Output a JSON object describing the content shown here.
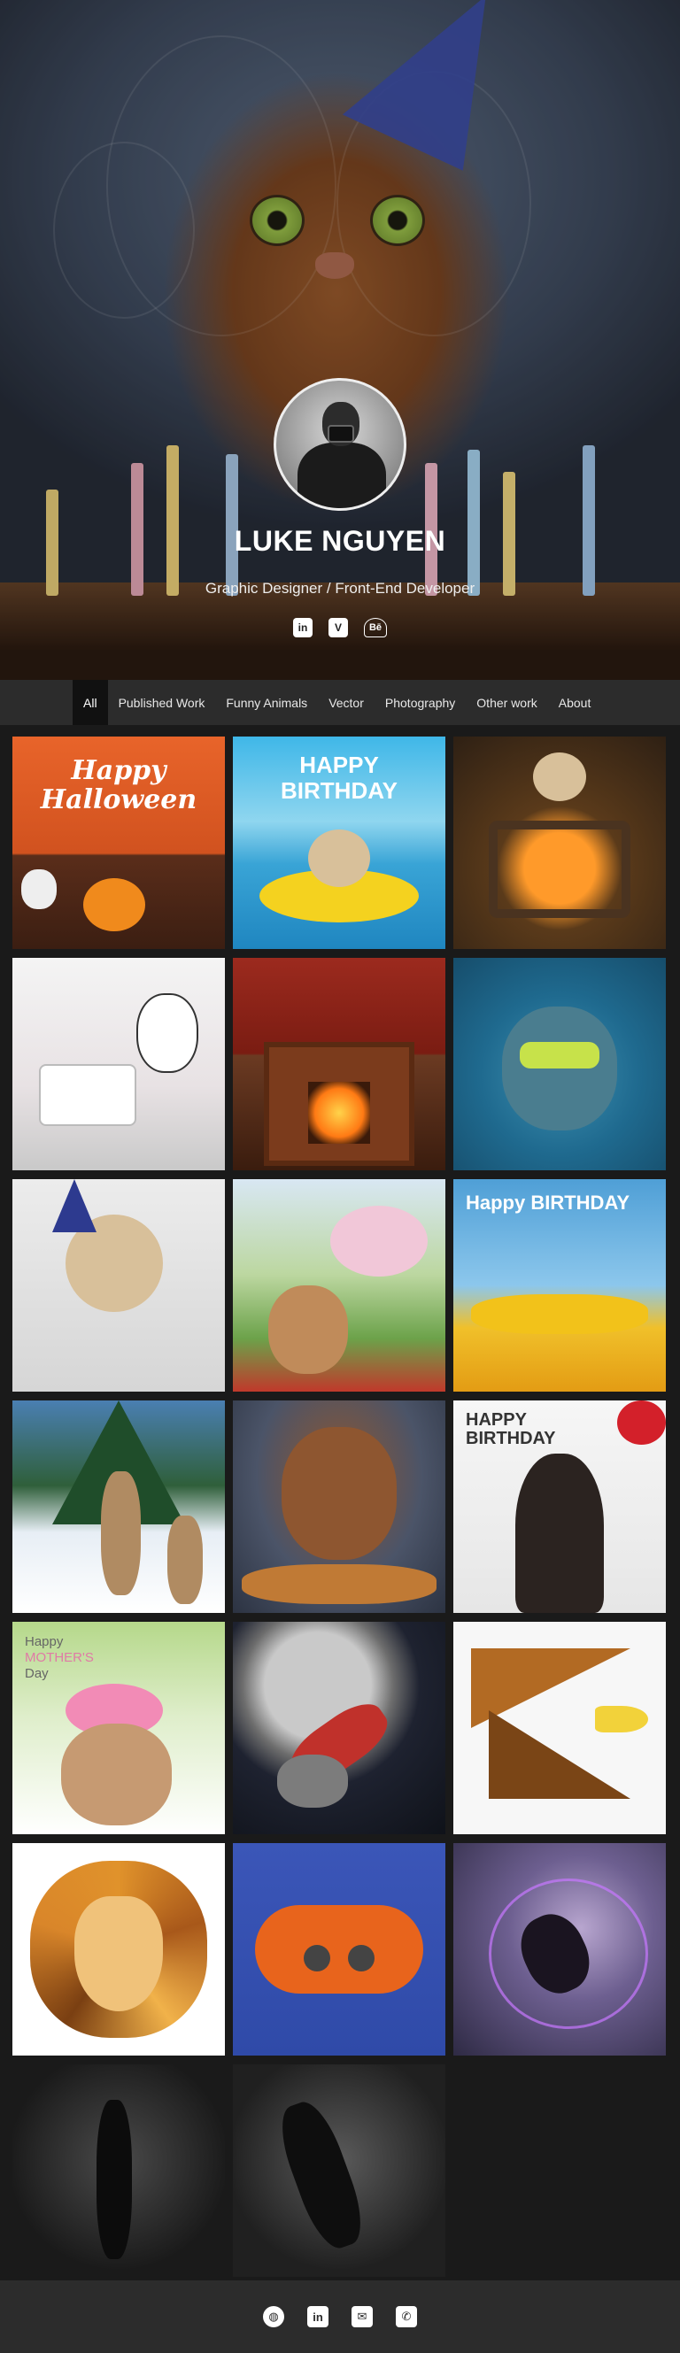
{
  "profile": {
    "name": "LUKE NGUYEN",
    "subtitle": "Graphic Designer / Front-End Developer"
  },
  "socials": [
    {
      "icon": "linkedin-icon",
      "glyph": "in"
    },
    {
      "icon": "vimeo-icon",
      "glyph": "V"
    },
    {
      "icon": "behance-icon",
      "glyph": "Bē"
    }
  ],
  "nav": {
    "items": [
      {
        "label": "All",
        "active": true
      },
      {
        "label": "Published Work"
      },
      {
        "label": "Funny Animals"
      },
      {
        "label": "Vector"
      },
      {
        "label": "Photography"
      },
      {
        "label": "Other work"
      },
      {
        "label": "About"
      }
    ]
  },
  "gallery": {
    "halloween": {
      "text_line1": "Happy",
      "text_line2": "Halloween"
    },
    "birthday_pool": {
      "text_line1": "HAPPY",
      "text_line2": "BIRTHDAY"
    },
    "birthday_plane": {
      "text": "Happy BIRTHDAY"
    },
    "birthday_chimp": {
      "text_line1": "HAPPY",
      "text_line2": "BIRTHDAY"
    },
    "mothers_day": {
      "text_line1": "Happy",
      "text_line2": "MOTHER'S",
      "text_line3": "Day"
    }
  },
  "footer": {
    "icons": [
      {
        "icon": "globe-icon",
        "glyph": "◍"
      },
      {
        "icon": "linkedin-icon",
        "glyph": "in"
      },
      {
        "icon": "mail-icon",
        "glyph": "✉"
      },
      {
        "icon": "phone-icon",
        "glyph": "✆"
      }
    ]
  },
  "colors": {
    "background": "#1a1a1a",
    "nav": "#2c2c2c",
    "nav_active": "#111111",
    "footer": "#2c2c2c"
  }
}
